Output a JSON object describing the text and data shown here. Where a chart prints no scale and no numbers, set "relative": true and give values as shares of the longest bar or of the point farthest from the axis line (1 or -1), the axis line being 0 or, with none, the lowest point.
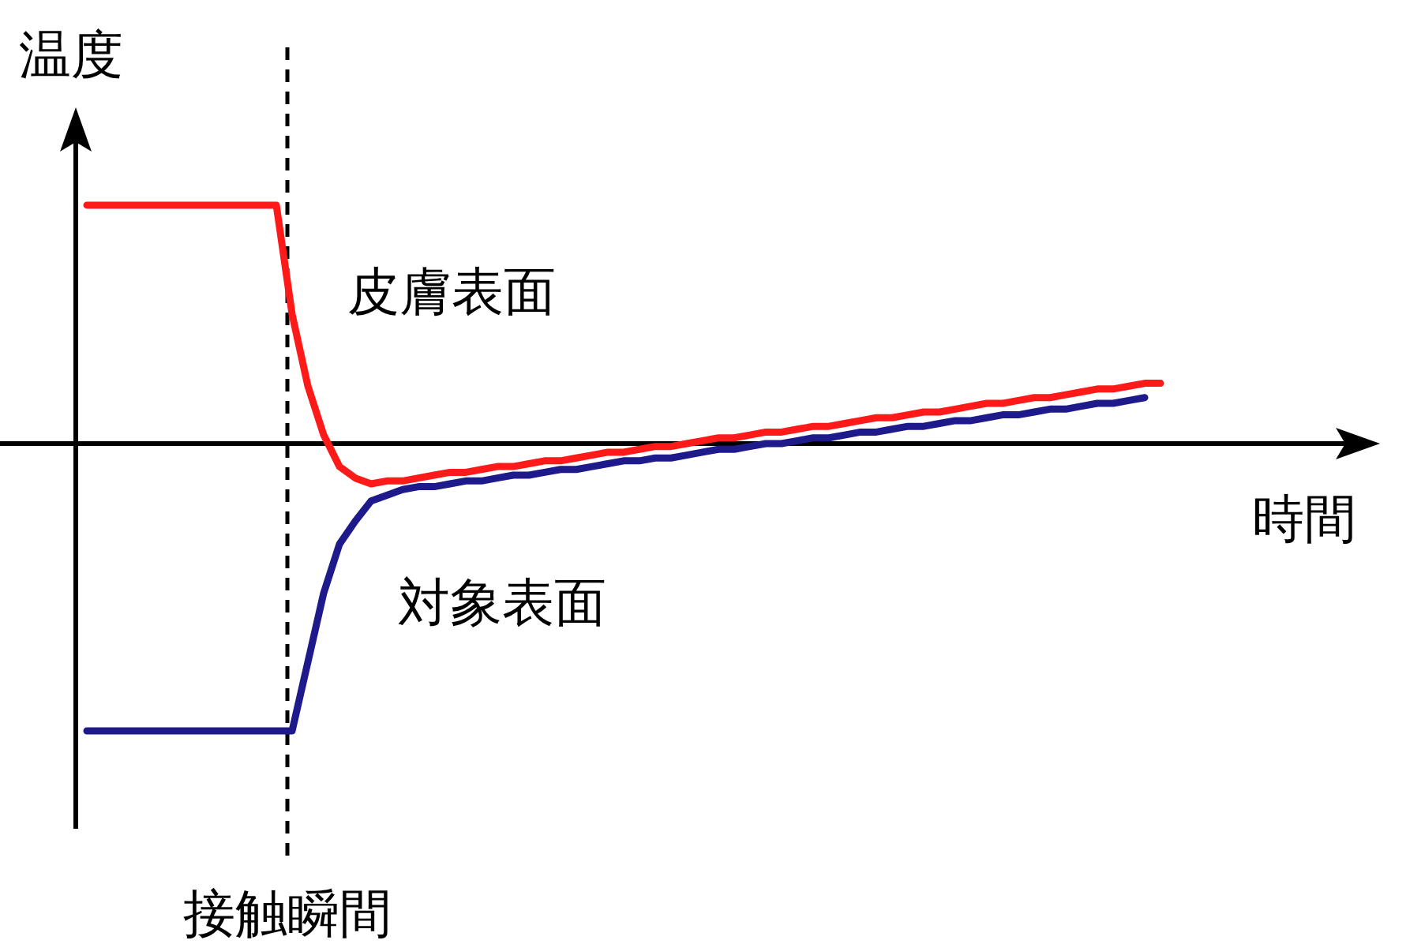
{
  "chart_data": {
    "type": "line",
    "relative": true,
    "xlabel": "時間",
    "ylabel": "温度",
    "categories": [
      null,
      null,
      null,
      null,
      null,
      null,
      null,
      null,
      null,
      null,
      null,
      null,
      null,
      null,
      null,
      null,
      null,
      null,
      null,
      null,
      null,
      null,
      null,
      null,
      null,
      null,
      null,
      null,
      null,
      null,
      null,
      null,
      null,
      null,
      null,
      null,
      null,
      null,
      null,
      null,
      null,
      null,
      null,
      null,
      null,
      null,
      null,
      null,
      null,
      null,
      null,
      null,
      null,
      null,
      null,
      null,
      null,
      null,
      null,
      null,
      null,
      null,
      null,
      null,
      null,
      null,
      null,
      null,
      null
    ],
    "series": [
      {
        "name": "皮膚表面",
        "color": "#ff1a1a",
        "values": [
          0.83,
          0.83,
          0.83,
          0.83,
          0.83,
          0.83,
          0.83,
          0.83,
          0.83,
          0.83,
          0.83,
          0.83,
          0.83,
          0.45,
          0.2,
          0.03,
          -0.08,
          -0.12,
          -0.14,
          -0.13,
          -0.13,
          -0.12,
          -0.11,
          -0.1,
          -0.1,
          -0.09,
          -0.08,
          -0.08,
          -0.07,
          -0.06,
          -0.06,
          -0.05,
          -0.04,
          -0.03,
          -0.03,
          -0.02,
          -0.01,
          -0.01,
          0.0,
          0.01,
          0.02,
          0.02,
          0.03,
          0.04,
          0.04,
          0.05,
          0.06,
          0.06,
          0.07,
          0.08,
          0.09,
          0.09,
          0.1,
          0.11,
          0.11,
          0.12,
          0.13,
          0.14,
          0.14,
          0.15,
          0.16,
          0.16,
          0.17,
          0.18,
          0.19,
          0.19,
          0.2,
          0.21,
          0.21
        ]
      },
      {
        "name": "対象表面",
        "color": "#1f1a8c",
        "values": [
          -1,
          -1,
          -1,
          -1,
          -1,
          -1,
          -1,
          -1,
          -1,
          -1,
          -1,
          -1,
          -1,
          -1,
          -0.76,
          -0.52,
          -0.35,
          -0.27,
          -0.2,
          -0.18,
          -0.16,
          -0.15,
          -0.15,
          -0.14,
          -0.13,
          -0.13,
          -0.12,
          -0.11,
          -0.11,
          -0.1,
          -0.09,
          -0.09,
          -0.08,
          -0.07,
          -0.06,
          -0.06,
          -0.05,
          -0.05,
          -0.04,
          -0.03,
          -0.02,
          -0.02,
          -0.01,
          0.0,
          0.0,
          0.01,
          0.02,
          0.02,
          0.03,
          0.04,
          0.04,
          0.05,
          0.06,
          0.06,
          0.07,
          0.08,
          0.08,
          0.09,
          0.1,
          0.1,
          0.11,
          0.12,
          0.12,
          0.13,
          0.14,
          0.14,
          0.15,
          0.16,
          null
        ]
      }
    ],
    "annotations": [
      "接触瞬間"
    ]
  }
}
